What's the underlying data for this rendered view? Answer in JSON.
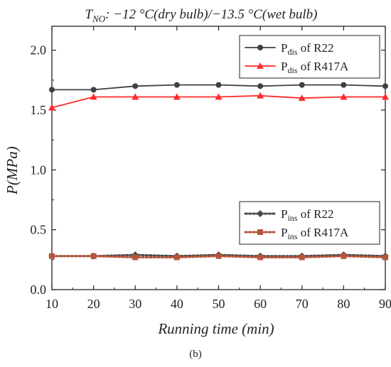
{
  "title": {
    "symbol": "T",
    "subscript": "NO",
    "rest": ": −12 °C(dry bulb)/−13.5 °C(wet bulb)"
  },
  "caption": "(b)",
  "chart_data": {
    "type": "line",
    "xlabel": "Running time (min)",
    "ylabel": "P(MPa)",
    "xlim": [
      10,
      90
    ],
    "ylim": [
      0.0,
      2.2
    ],
    "xticks": [
      10,
      20,
      30,
      40,
      50,
      60,
      70,
      80,
      90
    ],
    "yticks": [
      0.0,
      0.5,
      1.0,
      1.5,
      2.0
    ],
    "xtick_labels": [
      "10",
      "20",
      "30",
      "40",
      "50",
      "60",
      "70",
      "80",
      "90"
    ],
    "ytick_labels": [
      "0.0",
      "0.5",
      "1.0",
      "1.5",
      "2.0"
    ],
    "grid": false,
    "x": [
      10,
      20,
      30,
      40,
      50,
      60,
      70,
      80,
      90
    ],
    "series": [
      {
        "name": "P_dis of R22",
        "label_main": "P",
        "label_sub": "dis",
        "label_rest": " of R22",
        "color": "#404040",
        "marker": "circle",
        "dash": "solid",
        "values": [
          1.67,
          1.67,
          1.7,
          1.71,
          1.71,
          1.7,
          1.71,
          1.71,
          1.7
        ]
      },
      {
        "name": "P_dis of R417A",
        "label_main": "P",
        "label_sub": "dis",
        "label_rest": " of R417A",
        "color": "#ff2a2a",
        "marker": "triangle",
        "dash": "solid",
        "values": [
          1.52,
          1.61,
          1.61,
          1.61,
          1.61,
          1.62,
          1.6,
          1.61,
          1.61
        ]
      },
      {
        "name": "P_ins of R22",
        "label_main": "P",
        "label_sub": "ins",
        "label_rest": " of R22",
        "color": "#4a4a4a",
        "marker": "diamond",
        "dash": "dotted",
        "values": [
          0.28,
          0.28,
          0.29,
          0.28,
          0.29,
          0.28,
          0.28,
          0.29,
          0.28
        ]
      },
      {
        "name": "P_ins of R417A",
        "label_main": "P",
        "label_sub": "ins",
        "label_rest": " of R417A",
        "color": "#b5553a",
        "marker": "square",
        "dash": "dotted",
        "values": [
          0.28,
          0.28,
          0.27,
          0.27,
          0.28,
          0.27,
          0.27,
          0.28,
          0.27
        ]
      }
    ],
    "legends": [
      {
        "placement": "top-right",
        "series": [
          0,
          1
        ]
      },
      {
        "placement": "bottom-right",
        "series": [
          2,
          3
        ]
      }
    ]
  }
}
